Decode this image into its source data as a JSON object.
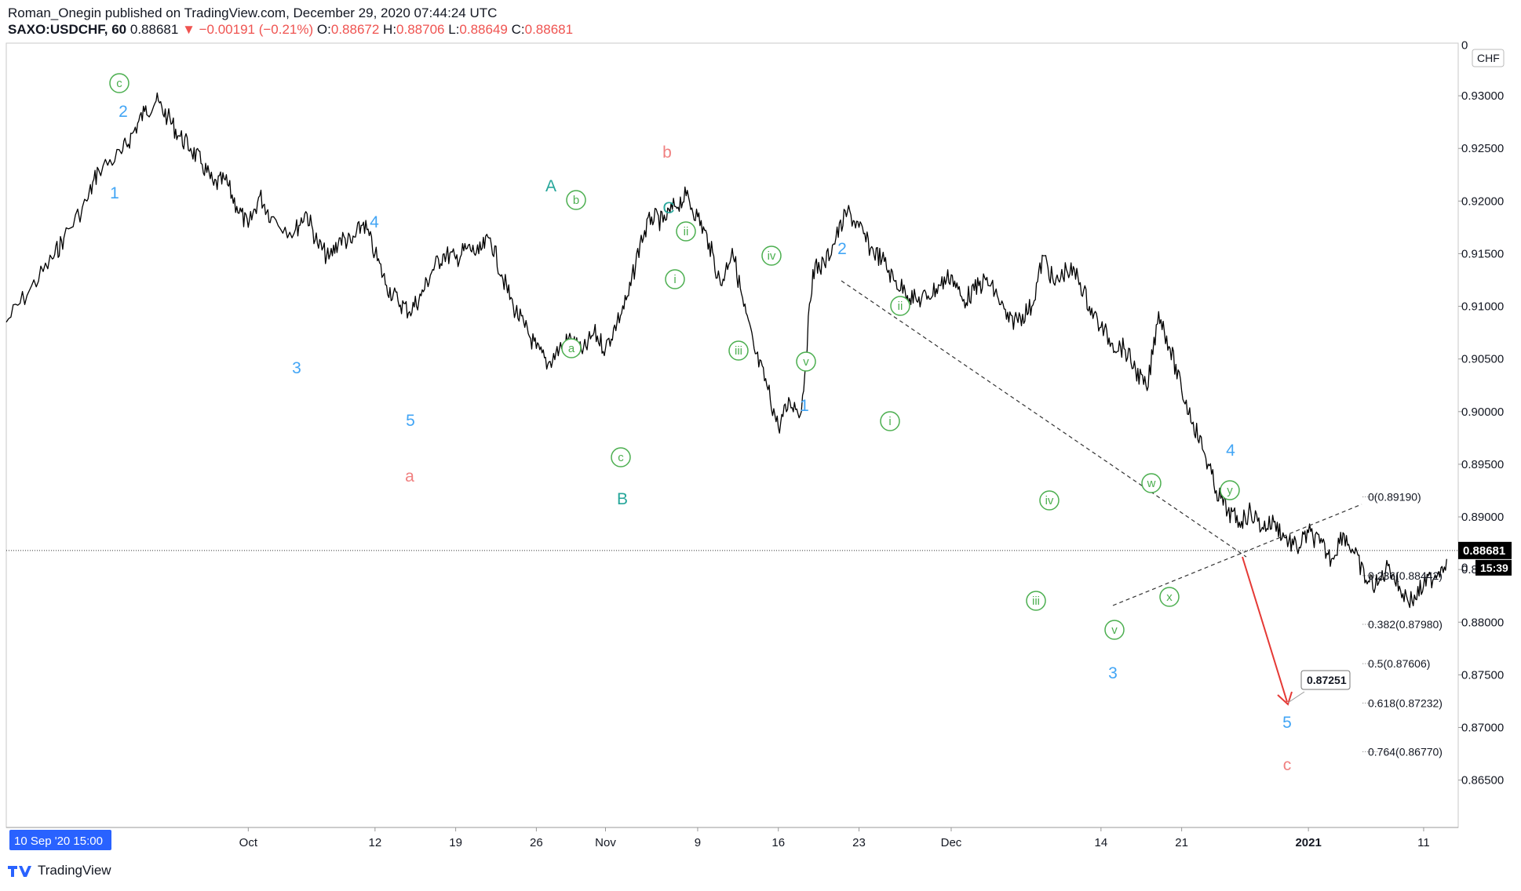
{
  "header": {
    "line1": "Roman_Onegin published on TradingView.com, December 29, 2020 07:44:24 UTC",
    "symbol": "SAXO:USDCHF, 60",
    "last": "0.88681",
    "change": "▼ −0.00191 (−0.21%)",
    "o_label": "O:",
    "o_val": "0.88672",
    "h_label": "H:",
    "h_val": "0.88706",
    "l_label": "L:",
    "l_val": "0.88649",
    "c_label": "C:",
    "c_val": "0.88681"
  },
  "footer": {
    "brand": "TradingView"
  },
  "colors": {
    "price": "#000000",
    "green": "#4caf50",
    "blue": "#42a5f5",
    "cyan": "#26a69a",
    "salmon": "#f08080",
    "arrow": "#e53935",
    "fib": "#555555"
  },
  "chart_data": {
    "type": "line",
    "currency": "CHF",
    "x_range": [
      "2020-09-10",
      "2021-01-14"
    ],
    "ylim": [
      0.8605,
      0.935
    ],
    "y_ticks": [
      "0.93000",
      "0.92500",
      "0.92000",
      "0.91500",
      "0.91000",
      "0.90500",
      "0.90000",
      "0.89500",
      "0.89000",
      "0.88500",
      "0.88000",
      "0.87500",
      "0.87000",
      "0.86500"
    ],
    "x_ticks": [
      {
        "label": "Oct",
        "date": "2020-10-01"
      },
      {
        "label": "12",
        "date": "2020-10-12"
      },
      {
        "label": "19",
        "date": "2020-10-19"
      },
      {
        "label": "26",
        "date": "2020-10-26"
      },
      {
        "label": "Nov",
        "date": "2020-11-01"
      },
      {
        "label": "9",
        "date": "2020-11-09"
      },
      {
        "label": "16",
        "date": "2020-11-16"
      },
      {
        "label": "23",
        "date": "2020-11-23"
      },
      {
        "label": "Dec",
        "date": "2020-12-01"
      },
      {
        "label": "14",
        "date": "2020-12-14"
      },
      {
        "label": "21",
        "date": "2020-12-21"
      },
      {
        "label": "2021",
        "date": "2021-01-01"
      },
      {
        "label": "11",
        "date": "2021-01-11"
      }
    ],
    "start_label": "10 Sep '20   15:00",
    "last_price": "0.88681",
    "countdown": "15:39",
    "axis_partial_label": "0",
    "series": [
      {
        "points": [
          [
            "2020-09-10",
            0.9085
          ],
          [
            "2020-09-12",
            0.9115
          ],
          [
            "2020-09-14",
            0.9145
          ],
          [
            "2020-09-15",
            0.9165
          ],
          [
            "2020-09-17",
            0.92
          ],
          [
            "2020-09-18",
            0.923
          ],
          [
            "2020-09-20",
            0.9245
          ],
          [
            "2020-09-21",
            0.9265
          ],
          [
            "2020-09-22",
            0.9285
          ],
          [
            "2020-09-23",
            0.9295
          ],
          [
            "2020-09-24",
            0.928
          ],
          [
            "2020-09-25",
            0.9262
          ],
          [
            "2020-09-26",
            0.925
          ],
          [
            "2020-09-27",
            0.9235
          ],
          [
            "2020-09-28",
            0.9215
          ],
          [
            "2020-09-29",
            0.922
          ],
          [
            "2020-09-30",
            0.9195
          ],
          [
            "2020-10-01",
            0.9175
          ],
          [
            "2020-10-02",
            0.9205
          ],
          [
            "2020-10-03",
            0.9185
          ],
          [
            "2020-10-05",
            0.917
          ],
          [
            "2020-10-06",
            0.919
          ],
          [
            "2020-10-07",
            0.916
          ],
          [
            "2020-10-08",
            0.9145
          ],
          [
            "2020-10-09",
            0.9165
          ],
          [
            "2020-10-10",
            0.916
          ],
          [
            "2020-10-11",
            0.918
          ],
          [
            "2020-10-12",
            0.915
          ],
          [
            "2020-10-13",
            0.912
          ],
          [
            "2020-10-14",
            0.9105
          ],
          [
            "2020-10-15",
            0.9095
          ],
          [
            "2020-10-16",
            0.911
          ],
          [
            "2020-10-17",
            0.9135
          ],
          [
            "2020-10-18",
            0.915
          ],
          [
            "2020-10-19",
            0.9145
          ],
          [
            "2020-10-20",
            0.9155
          ],
          [
            "2020-10-21",
            0.915
          ],
          [
            "2020-10-22",
            0.9165
          ],
          [
            "2020-10-23",
            0.913
          ],
          [
            "2020-10-24",
            0.91
          ],
          [
            "2020-10-25",
            0.908
          ],
          [
            "2020-10-26",
            0.906
          ],
          [
            "2020-10-27",
            0.9045
          ],
          [
            "2020-10-28",
            0.906
          ],
          [
            "2020-10-29",
            0.907
          ],
          [
            "2020-10-30",
            0.9055
          ],
          [
            "2020-10-31",
            0.9075
          ],
          [
            "2020-11-01",
            0.906
          ],
          [
            "2020-11-02",
            0.9085
          ],
          [
            "2020-11-03",
            0.911
          ],
          [
            "2020-11-04",
            0.916
          ],
          [
            "2020-11-05",
            0.9185
          ],
          [
            "2020-11-06",
            0.918
          ],
          [
            "2020-11-07",
            0.9195
          ],
          [
            "2020-11-08",
            0.9205
          ],
          [
            "2020-11-09",
            0.9185
          ],
          [
            "2020-11-10",
            0.916
          ],
          [
            "2020-11-11",
            0.912
          ],
          [
            "2020-11-12",
            0.9155
          ],
          [
            "2020-11-13",
            0.91
          ],
          [
            "2020-11-14",
            0.9055
          ],
          [
            "2020-11-15",
            0.9025
          ],
          [
            "2020-11-16",
            0.8985
          ],
          [
            "2020-11-17",
            0.901
          ],
          [
            "2020-11-18",
            0.9
          ],
          [
            "2020-11-19",
            0.9135
          ],
          [
            "2020-11-20",
            0.914
          ],
          [
            "2020-11-21",
            0.9165
          ],
          [
            "2020-11-22",
            0.919
          ],
          [
            "2020-11-23",
            0.9175
          ],
          [
            "2020-11-24",
            0.9155
          ],
          [
            "2020-11-25",
            0.9145
          ],
          [
            "2020-11-26",
            0.9125
          ],
          [
            "2020-11-27",
            0.9115
          ],
          [
            "2020-11-28",
            0.9105
          ],
          [
            "2020-11-29",
            0.911
          ],
          [
            "2020-11-30",
            0.912
          ],
          [
            "2020-12-01",
            0.913
          ],
          [
            "2020-12-02",
            0.9105
          ],
          [
            "2020-12-03",
            0.9115
          ],
          [
            "2020-12-04",
            0.9125
          ],
          [
            "2020-12-05",
            0.911
          ],
          [
            "2020-12-06",
            0.9085
          ],
          [
            "2020-12-07",
            0.909
          ],
          [
            "2020-12-08",
            0.91
          ],
          [
            "2020-12-09",
            0.9148
          ],
          [
            "2020-12-10",
            0.912
          ],
          [
            "2020-12-11",
            0.9135
          ],
          [
            "2020-12-12",
            0.9128
          ],
          [
            "2020-12-13",
            0.91
          ],
          [
            "2020-12-14",
            0.908
          ],
          [
            "2020-12-15",
            0.9065
          ],
          [
            "2020-12-16",
            0.906
          ],
          [
            "2020-12-17",
            0.904
          ],
          [
            "2020-12-18",
            0.902
          ],
          [
            "2020-12-19",
            0.9095
          ],
          [
            "2020-12-20",
            0.906
          ],
          [
            "2020-12-21",
            0.902
          ],
          [
            "2020-12-22",
            0.899
          ],
          [
            "2020-12-23",
            0.896
          ],
          [
            "2020-12-24",
            0.8925
          ],
          [
            "2020-12-25",
            0.8905
          ],
          [
            "2020-12-26",
            0.8895
          ],
          [
            "2020-12-27",
            0.8905
          ],
          [
            "2020-12-28",
            0.889
          ],
          [
            "2020-12-29",
            0.8895
          ],
          [
            "2020-12-30",
            0.888
          ],
          [
            "2020-12-31",
            0.887
          ],
          [
            "2021-01-01",
            0.8885
          ],
          [
            "2021-01-02",
            0.8875
          ],
          [
            "2021-01-03",
            0.886
          ],
          [
            "2021-01-04",
            0.8885
          ],
          [
            "2021-01-05",
            0.8865
          ],
          [
            "2021-01-06",
            0.884
          ],
          [
            "2021-01-07",
            0.8835
          ],
          [
            "2021-01-08",
            0.8855
          ],
          [
            "2021-01-09",
            0.883
          ],
          [
            "2021-01-10",
            0.882
          ],
          [
            "2021-01-11",
            0.8835
          ],
          [
            "2021-01-12",
            0.8845
          ],
          [
            "2021-01-13",
            0.886
          ]
        ]
      }
    ],
    "fib_levels": [
      {
        "label": "0(0.89190)",
        "value": 0.8919
      },
      {
        "label": "0.236(0.88442)",
        "value": 0.88442
      },
      {
        "label": "0.382(0.87980)",
        "value": 0.8798
      },
      {
        "label": "0.5(0.87606)",
        "value": 0.87606
      },
      {
        "label": "0.618(0.87232)",
        "value": 0.87232
      },
      {
        "label": "0.764(0.86770)",
        "value": 0.8677
      }
    ],
    "target_label": "0.87251",
    "wave_labels": [
      {
        "text": "c",
        "circled": true,
        "color": "green"
      },
      {
        "text": "2",
        "color": "blue"
      },
      {
        "text": "1",
        "color": "blue"
      },
      {
        "text": "4",
        "color": "blue"
      },
      {
        "text": "3",
        "color": "blue"
      },
      {
        "text": "5",
        "color": "blue"
      },
      {
        "text": "a",
        "color": "salmon"
      },
      {
        "text": "A",
        "color": "cyan"
      },
      {
        "text": "b",
        "circled": true,
        "color": "green"
      },
      {
        "text": "a",
        "circled": true,
        "color": "green"
      },
      {
        "text": "c",
        "circled": true,
        "color": "green"
      },
      {
        "text": "B",
        "color": "cyan"
      },
      {
        "text": "b",
        "color": "salmon"
      },
      {
        "text": "C",
        "color": "cyan"
      },
      {
        "text": "ii",
        "circled": true,
        "color": "green"
      },
      {
        "text": "i",
        "circled": true,
        "color": "green"
      },
      {
        "text": "iii",
        "circled": true,
        "color": "green"
      },
      {
        "text": "iv",
        "circled": true,
        "color": "green"
      },
      {
        "text": "v",
        "circled": true,
        "color": "green"
      },
      {
        "text": "2",
        "color": "blue"
      },
      {
        "text": "1",
        "color": "blue"
      },
      {
        "text": "ii",
        "circled": true,
        "color": "green"
      },
      {
        "text": "i",
        "circled": true,
        "color": "green"
      },
      {
        "text": "iv",
        "circled": true,
        "color": "green"
      },
      {
        "text": "iii",
        "circled": true,
        "color": "green"
      },
      {
        "text": "v",
        "circled": true,
        "color": "green"
      },
      {
        "text": "3",
        "color": "blue"
      },
      {
        "text": "w",
        "circled": true,
        "color": "green"
      },
      {
        "text": "x",
        "circled": true,
        "color": "green"
      },
      {
        "text": "4",
        "color": "blue"
      },
      {
        "text": "y",
        "circled": true,
        "color": "green"
      },
      {
        "text": "5",
        "color": "blue"
      },
      {
        "text": "c",
        "color": "salmon"
      }
    ]
  }
}
